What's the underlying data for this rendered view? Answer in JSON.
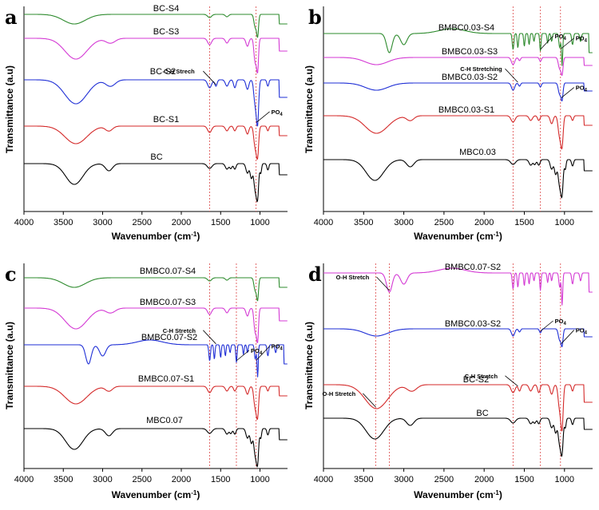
{
  "chart_data": [
    {
      "panel": "a",
      "type": "line",
      "xlabel": "Wavenumber (cm-1)",
      "ylabel": "Transmittance (a.u)",
      "xlim": [
        4000,
        650
      ],
      "xticks": [
        4000,
        3500,
        3000,
        2500,
        2000,
        1500,
        1000
      ],
      "ref_lines": [
        1640,
        1050
      ],
      "series": [
        {
          "name": "BC-S4",
          "color": "#2e8b2e",
          "profile": "s4"
        },
        {
          "name": "BC-S3",
          "color": "#d43ad4",
          "profile": "s3"
        },
        {
          "name": "BC-S2",
          "color": "#1f2fd6",
          "profile": "s2a"
        },
        {
          "name": "BC-S1",
          "color": "#d42a2a",
          "profile": "s1"
        },
        {
          "name": "BC",
          "color": "#000000",
          "profile": "bc"
        }
      ],
      "annotations": [
        {
          "text": "C-H Strech",
          "target_x": 1560,
          "series_index": 2
        },
        {
          "text": "PO",
          "sub": "4",
          "target_x": 1040,
          "series_index": 2
        }
      ]
    },
    {
      "panel": "b",
      "type": "line",
      "xlabel": "Wavenumber (cm-1)",
      "ylabel": "Transmittance (a.u)",
      "xlim": [
        4000,
        650
      ],
      "xticks": [
        4000,
        3500,
        3000,
        2500,
        2000,
        1500,
        1000
      ],
      "ref_lines": [
        1640,
        1300,
        1050
      ],
      "series": [
        {
          "name": "BMBC0.03-S4",
          "color": "#2e8b2e",
          "profile": "sharp"
        },
        {
          "name": "BMBC0.03-S3",
          "color": "#d43ad4",
          "profile": "flat"
        },
        {
          "name": "BMBC0.03-S2",
          "color": "#1f2fd6",
          "profile": "flat"
        },
        {
          "name": "BMBC0.03-S1",
          "color": "#d42a2a",
          "profile": "s1"
        },
        {
          "name": "MBC0.03",
          "color": "#000000",
          "profile": "bc"
        }
      ],
      "annotations": [
        {
          "text": "PO",
          "sub": "4",
          "target_x": 1300,
          "series_index": 0
        },
        {
          "text": "PO",
          "sub": "4",
          "target_x": 1040,
          "series_index": 0
        },
        {
          "text": "C-H Stretching",
          "target_x": 1580,
          "series_index": 2
        },
        {
          "text": "PO",
          "sub": "4",
          "target_x": 1040,
          "series_index": 2
        }
      ]
    },
    {
      "panel": "c",
      "type": "line",
      "xlabel": "Wavenumber (cm-1)",
      "ylabel": "Transmittance (a.u)",
      "xlim": [
        4000,
        650
      ],
      "xticks": [
        4000,
        3500,
        3000,
        2500,
        2000,
        1500,
        1000
      ],
      "ref_lines": [
        1640,
        1300,
        1050
      ],
      "series": [
        {
          "name": "BMBC0.07-S4",
          "color": "#2e8b2e",
          "profile": "s4"
        },
        {
          "name": "BMBC0.07-S3",
          "color": "#d43ad4",
          "profile": "s3"
        },
        {
          "name": "BMBC0.07-S2",
          "color": "#1f2fd6",
          "profile": "sharp"
        },
        {
          "name": "BMBC0.07-S1",
          "color": "#d42a2a",
          "profile": "s1"
        },
        {
          "name": "MBC0.07",
          "color": "#000000",
          "profile": "bc"
        }
      ],
      "annotations": [
        {
          "text": "C-H Stretch",
          "target_x": 1560,
          "series_index": 2
        },
        {
          "text": "PO",
          "sub": "4",
          "target_x": 1300,
          "series_index": 2
        },
        {
          "text": "PO",
          "sub": "4",
          "target_x": 1040,
          "series_index": 2
        }
      ]
    },
    {
      "panel": "d",
      "type": "line",
      "xlabel": "Wavenumber (cm-1)",
      "ylabel": "Transmittance (a.u)",
      "xlim": [
        4000,
        650
      ],
      "xticks": [
        4000,
        3500,
        3000,
        2500,
        2000,
        1500,
        1000
      ],
      "ref_lines": [
        3350,
        3180,
        1640,
        1300,
        1050
      ],
      "series": [
        {
          "name": "BMBC0.07-S2",
          "color": "#d43ad4",
          "profile": "sharp"
        },
        {
          "name": "BMBC0.03-S2",
          "color": "#1f2fd6",
          "profile": "flat"
        },
        {
          "name": "BC-S2",
          "color": "#d42a2a",
          "profile": "s2a"
        },
        {
          "name": "BC",
          "color": "#000000",
          "profile": "bc"
        }
      ],
      "annotations": [
        {
          "text": "O-H Stretch",
          "target_x": 3180,
          "series_index": 0
        },
        {
          "text": "PO",
          "sub": "4",
          "target_x": 1300,
          "series_index": 1
        },
        {
          "text": "PO",
          "sub": "4",
          "target_x": 1040,
          "series_index": 1
        },
        {
          "text": "C-H Stretch",
          "target_x": 1580,
          "series_index": 2
        },
        {
          "text": "O-H Stretch",
          "target_x": 3350,
          "series_index": 2
        }
      ]
    }
  ]
}
